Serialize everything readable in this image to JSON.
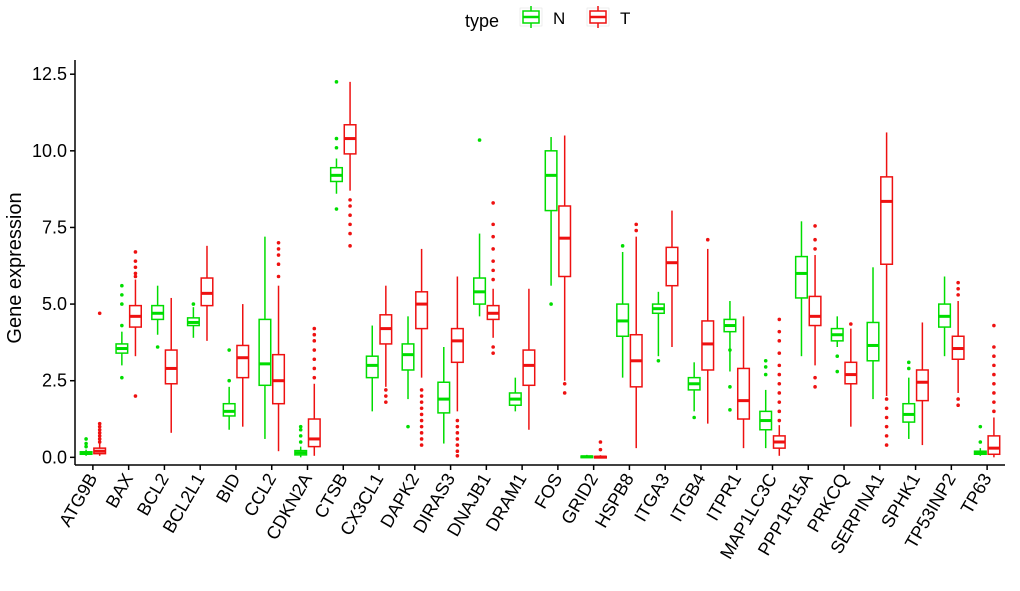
{
  "chart_data": {
    "type": "boxplot",
    "ylabel": "Gene expression",
    "xlabel": "",
    "ylim": [
      -0.25,
      12.8
    ],
    "yticks": [
      "0.0",
      "2.5",
      "5.0",
      "7.5",
      "10.0",
      "12.5"
    ],
    "ytick_values": [
      0,
      2.5,
      5,
      7.5,
      10,
      12.5
    ],
    "legend": {
      "title": "type",
      "position": "top",
      "entries": [
        {
          "label": "N",
          "color": "#00dd00"
        },
        {
          "label": "T",
          "color": "#ee1111"
        }
      ]
    },
    "categories": [
      "ATG9B",
      "BAX",
      "BCL2",
      "BCL2L1",
      "BID",
      "CCL2",
      "CDKN2A",
      "CTSB",
      "CX3CL1",
      "DAPK2",
      "DIRAS3",
      "DNAJB1",
      "DRAM1",
      "FOS",
      "GRID2",
      "HSPB8",
      "ITGA3",
      "ITGB4",
      "ITPR1",
      "MAP1LC3C",
      "PPP1R15A",
      "PRKCQ",
      "SERPINA1",
      "SPHK1",
      "TP53INP2",
      "TP63"
    ],
    "series": [
      {
        "name": "N",
        "boxes": [
          {
            "whislo": 0.05,
            "q1": 0.1,
            "med": 0.15,
            "q3": 0.18,
            "whishi": 0.25,
            "outliers": [
              0.35,
              0.45,
              0.6
            ]
          },
          {
            "whislo": 3.0,
            "q1": 3.4,
            "med": 3.55,
            "q3": 3.7,
            "whishi": 4.1,
            "outliers": [
              2.6,
              4.3,
              5.0,
              5.3,
              5.6
            ]
          },
          {
            "whislo": 4.0,
            "q1": 4.5,
            "med": 4.7,
            "q3": 4.95,
            "whishi": 5.6,
            "outliers": [
              3.6
            ]
          },
          {
            "whislo": 3.9,
            "q1": 4.3,
            "med": 4.4,
            "q3": 4.55,
            "whishi": 4.9,
            "outliers": [
              5.0
            ]
          },
          {
            "whislo": 0.9,
            "q1": 1.35,
            "med": 1.5,
            "q3": 1.75,
            "whishi": 2.3,
            "outliers": [
              2.5,
              3.5
            ]
          },
          {
            "whislo": 0.6,
            "q1": 2.35,
            "med": 3.05,
            "q3": 4.5,
            "whishi": 7.2,
            "outliers": []
          },
          {
            "whislo": 0.0,
            "q1": 0.08,
            "med": 0.15,
            "q3": 0.22,
            "whishi": 0.35,
            "outliers": [
              0.5,
              0.7,
              0.9,
              1.0
            ]
          },
          {
            "whislo": 8.6,
            "q1": 9.0,
            "med": 9.2,
            "q3": 9.45,
            "whishi": 9.75,
            "outliers": [
              8.1,
              10.1,
              10.4,
              12.25
            ]
          },
          {
            "whislo": 1.5,
            "q1": 2.6,
            "med": 3.0,
            "q3": 3.3,
            "whishi": 4.3,
            "outliers": []
          },
          {
            "whislo": 1.9,
            "q1": 2.85,
            "med": 3.35,
            "q3": 3.7,
            "whishi": 4.6,
            "outliers": [
              1.0
            ]
          },
          {
            "whislo": 0.45,
            "q1": 1.45,
            "med": 1.9,
            "q3": 2.45,
            "whishi": 3.6,
            "outliers": []
          },
          {
            "whislo": 4.6,
            "q1": 5.0,
            "med": 5.4,
            "q3": 5.85,
            "whishi": 7.3,
            "outliers": [
              10.35
            ]
          },
          {
            "whislo": 1.5,
            "q1": 1.7,
            "med": 1.9,
            "q3": 2.1,
            "whishi": 2.6,
            "outliers": []
          },
          {
            "whislo": 5.6,
            "q1": 8.05,
            "med": 9.2,
            "q3": 10.0,
            "whishi": 10.45,
            "outliers": [
              5.0
            ]
          },
          {
            "whislo": 0.0,
            "q1": 0.0,
            "med": 0.02,
            "q3": 0.04,
            "whishi": 0.08,
            "outliers": []
          },
          {
            "whislo": 2.6,
            "q1": 3.95,
            "med": 4.45,
            "q3": 5.0,
            "whishi": 6.7,
            "outliers": [
              6.9
            ]
          },
          {
            "whislo": 3.3,
            "q1": 4.7,
            "med": 4.85,
            "q3": 5.0,
            "whishi": 5.4,
            "outliers": [
              3.15
            ]
          },
          {
            "whislo": 1.5,
            "q1": 2.2,
            "med": 2.4,
            "q3": 2.6,
            "whishi": 3.1,
            "outliers": [
              1.3
            ]
          },
          {
            "whislo": 2.8,
            "q1": 4.1,
            "med": 4.3,
            "q3": 4.5,
            "whishi": 5.1,
            "outliers": [
              1.55,
              2.3,
              3.5
            ]
          },
          {
            "whislo": 0.3,
            "q1": 0.9,
            "med": 1.2,
            "q3": 1.5,
            "whishi": 2.2,
            "outliers": [
              2.7,
              2.95,
              3.15
            ]
          },
          {
            "whislo": 3.3,
            "q1": 5.2,
            "med": 6.0,
            "q3": 6.55,
            "whishi": 7.7,
            "outliers": []
          },
          {
            "whislo": 3.6,
            "q1": 3.8,
            "med": 4.0,
            "q3": 4.2,
            "whishi": 4.6,
            "outliers": [
              2.8,
              3.3
            ]
          },
          {
            "whislo": 1.9,
            "q1": 3.15,
            "med": 3.65,
            "q3": 4.4,
            "whishi": 6.2,
            "outliers": []
          },
          {
            "whislo": 0.6,
            "q1": 1.15,
            "med": 1.4,
            "q3": 1.75,
            "whishi": 2.6,
            "outliers": [
              2.9,
              3.1
            ]
          },
          {
            "whislo": 3.3,
            "q1": 4.25,
            "med": 4.6,
            "q3": 5.0,
            "whishi": 5.9,
            "outliers": []
          },
          {
            "whislo": 0.05,
            "q1": 0.1,
            "med": 0.15,
            "q3": 0.2,
            "whishi": 0.3,
            "outliers": [
              0.5,
              1.0
            ]
          }
        ]
      },
      {
        "name": "T",
        "boxes": [
          {
            "whislo": 0.05,
            "q1": 0.12,
            "med": 0.2,
            "q3": 0.3,
            "whishi": 0.45,
            "outliers": [
              0.5,
              0.6,
              0.7,
              0.8,
              0.9,
              1.0,
              1.1,
              4.7
            ]
          },
          {
            "whislo": 3.3,
            "q1": 4.25,
            "med": 4.6,
            "q3": 4.95,
            "whishi": 5.8,
            "outliers": [
              2.0,
              5.9,
              6.0,
              6.2,
              6.4,
              6.7
            ]
          },
          {
            "whislo": 0.8,
            "q1": 2.4,
            "med": 2.9,
            "q3": 3.5,
            "whishi": 5.2,
            "outliers": []
          },
          {
            "whislo": 3.8,
            "q1": 4.95,
            "med": 5.35,
            "q3": 5.85,
            "whishi": 6.9,
            "outliers": []
          },
          {
            "whislo": 1.0,
            "q1": 2.6,
            "med": 3.25,
            "q3": 3.65,
            "whishi": 5.0,
            "outliers": []
          },
          {
            "whislo": 0.2,
            "q1": 1.75,
            "med": 2.5,
            "q3": 3.35,
            "whishi": 5.6,
            "outliers": [
              5.9,
              6.3,
              6.6,
              6.8,
              7.0
            ]
          },
          {
            "whislo": 0.05,
            "q1": 0.35,
            "med": 0.6,
            "q3": 1.25,
            "whishi": 2.4,
            "outliers": [
              2.6,
              2.9,
              3.2,
              3.5,
              3.8,
              4.0,
              4.2
            ]
          },
          {
            "whislo": 8.7,
            "q1": 9.9,
            "med": 10.4,
            "q3": 10.85,
            "whishi": 12.25,
            "outliers": [
              6.9,
              7.3,
              7.6,
              7.9,
              8.2,
              8.4
            ]
          },
          {
            "whislo": 2.3,
            "q1": 3.7,
            "med": 4.2,
            "q3": 4.65,
            "whishi": 5.6,
            "outliers": [
              1.8,
              2.0,
              2.2
            ]
          },
          {
            "whislo": 2.6,
            "q1": 4.2,
            "med": 5.0,
            "q3": 5.4,
            "whishi": 6.8,
            "outliers": [
              0.4,
              0.6,
              0.8,
              1.0,
              1.2,
              1.4,
              1.6,
              1.8,
              2.0,
              2.2
            ]
          },
          {
            "whislo": 1.5,
            "q1": 3.1,
            "med": 3.8,
            "q3": 4.2,
            "whishi": 5.9,
            "outliers": [
              0.05,
              0.2,
              0.4,
              0.6,
              0.8,
              1.0,
              1.2
            ]
          },
          {
            "whislo": 3.9,
            "q1": 4.5,
            "med": 4.7,
            "q3": 4.95,
            "whishi": 5.5,
            "outliers": [
              3.4,
              3.6,
              5.8,
              6.1,
              6.4,
              6.8,
              7.2,
              7.6,
              8.3
            ]
          },
          {
            "whislo": 0.9,
            "q1": 2.35,
            "med": 3.0,
            "q3": 3.5,
            "whishi": 5.5,
            "outliers": []
          },
          {
            "whislo": 2.5,
            "q1": 5.9,
            "med": 7.15,
            "q3": 8.2,
            "whishi": 10.5,
            "outliers": [
              2.1,
              2.4
            ]
          },
          {
            "whislo": 0.0,
            "q1": 0.0,
            "med": 0.01,
            "q3": 0.03,
            "whishi": 0.07,
            "outliers": [
              0.25,
              0.5
            ]
          },
          {
            "whislo": 0.3,
            "q1": 2.3,
            "med": 3.15,
            "q3": 4.0,
            "whishi": 7.2,
            "outliers": [
              7.4,
              7.6
            ]
          },
          {
            "whislo": 3.6,
            "q1": 5.6,
            "med": 6.35,
            "q3": 6.85,
            "whishi": 8.05,
            "outliers": []
          },
          {
            "whislo": 1.1,
            "q1": 2.85,
            "med": 3.7,
            "q3": 4.45,
            "whishi": 6.8,
            "outliers": [
              7.1
            ]
          },
          {
            "whislo": 0.3,
            "q1": 1.25,
            "med": 1.85,
            "q3": 2.9,
            "whishi": 4.6,
            "outliers": []
          },
          {
            "whislo": 0.05,
            "q1": 0.3,
            "med": 0.5,
            "q3": 0.7,
            "whishi": 1.05,
            "outliers": [
              1.2,
              1.5,
              1.8,
              2.1,
              2.4,
              2.7,
              3.0,
              3.4,
              3.8,
              4.1,
              4.5
            ]
          },
          {
            "whislo": 3.0,
            "q1": 4.3,
            "med": 4.6,
            "q3": 5.25,
            "whishi": 6.6,
            "outliers": [
              2.3,
              2.6,
              6.8,
              7.1,
              7.55
            ]
          },
          {
            "whislo": 1.0,
            "q1": 2.4,
            "med": 2.7,
            "q3": 3.1,
            "whishi": 4.2,
            "outliers": [
              4.35
            ]
          },
          {
            "whislo": 2.0,
            "q1": 6.3,
            "med": 8.35,
            "q3": 9.15,
            "whishi": 10.6,
            "outliers": [
              0.4,
              0.7,
              1.0,
              1.3,
              1.6,
              1.9
            ]
          },
          {
            "whislo": 0.4,
            "q1": 1.85,
            "med": 2.45,
            "q3": 2.85,
            "whishi": 4.4,
            "outliers": []
          },
          {
            "whislo": 2.1,
            "q1": 3.2,
            "med": 3.55,
            "q3": 3.95,
            "whishi": 5.1,
            "outliers": [
              1.7,
              1.9,
              5.3,
              5.5,
              5.7
            ]
          },
          {
            "whislo": 0.0,
            "q1": 0.1,
            "med": 0.3,
            "q3": 0.7,
            "whishi": 1.3,
            "outliers": [
              1.5,
              1.8,
              2.1,
              2.4,
              2.7,
              3.0,
              3.3,
              3.6,
              4.3
            ]
          }
        ]
      }
    ]
  }
}
